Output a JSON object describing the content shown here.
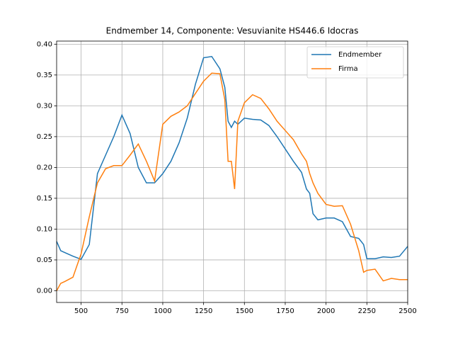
{
  "chart_data": {
    "type": "line",
    "title": "Endmember 14, Componente: Vesuvianite HS446.6  Idocras",
    "x": [
      350,
      375,
      400,
      450,
      500,
      550,
      600,
      650,
      700,
      750,
      800,
      850,
      900,
      950,
      1000,
      1050,
      1100,
      1150,
      1200,
      1250,
      1300,
      1350,
      1380,
      1400,
      1420,
      1440,
      1460,
      1500,
      1550,
      1600,
      1650,
      1700,
      1750,
      1800,
      1850,
      1880,
      1900,
      1920,
      1950,
      2000,
      2050,
      2100,
      2150,
      2200,
      2230,
      2250,
      2300,
      2350,
      2400,
      2450,
      2500
    ],
    "series": [
      {
        "name": "Endmember",
        "color": "#1f77b4",
        "values": [
          0.08,
          0.065,
          0.062,
          0.056,
          0.051,
          0.075,
          0.19,
          0.22,
          0.25,
          0.285,
          0.255,
          0.2,
          0.175,
          0.175,
          0.19,
          0.21,
          0.24,
          0.28,
          0.335,
          0.378,
          0.38,
          0.36,
          0.33,
          0.275,
          0.265,
          0.275,
          0.27,
          0.28,
          0.278,
          0.277,
          0.268,
          0.25,
          0.23,
          0.21,
          0.192,
          0.165,
          0.158,
          0.125,
          0.115,
          0.118,
          0.118,
          0.112,
          0.088,
          0.085,
          0.075,
          0.052,
          0.052,
          0.055,
          0.054,
          0.056,
          0.072
        ]
      },
      {
        "name": "Firma",
        "color": "#ff7f0e",
        "values": [
          0.0,
          0.012,
          0.015,
          0.022,
          0.06,
          0.12,
          0.175,
          0.198,
          0.203,
          0.203,
          0.22,
          0.238,
          0.21,
          0.178,
          0.27,
          0.283,
          0.29,
          0.3,
          0.32,
          0.34,
          0.353,
          0.352,
          0.31,
          0.21,
          0.21,
          0.165,
          0.275,
          0.305,
          0.318,
          0.312,
          0.295,
          0.275,
          0.26,
          0.245,
          0.222,
          0.21,
          0.19,
          0.175,
          0.158,
          0.14,
          0.137,
          0.138,
          0.108,
          0.065,
          0.03,
          0.033,
          0.035,
          0.016,
          0.02,
          0.018,
          0.018
        ]
      }
    ],
    "xlim": [
      350,
      2500
    ],
    "ylim": [
      -0.019,
      0.405
    ],
    "xticks": [
      500,
      750,
      1000,
      1250,
      1500,
      1750,
      2000,
      2250,
      2500
    ],
    "yticks": [
      {
        "value": 0,
        "label": "0.00"
      },
      0.05,
      {
        "value": 0.1,
        "label": "0.10"
      },
      0.15,
      {
        "value": 0.2,
        "label": "0.20"
      },
      0.25,
      {
        "value": 0.3,
        "label": "0.30"
      },
      0.35,
      {
        "value": 0.4,
        "label": "0.40"
      }
    ],
    "grid": true,
    "legend": "upper right"
  }
}
